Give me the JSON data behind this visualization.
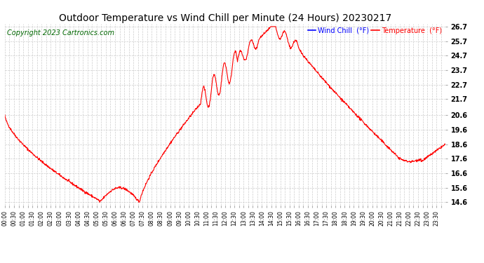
{
  "title": "Outdoor Temperature vs Wind Chill per Minute (24 Hours) 20230217",
  "copyright": "Copyright 2023 Cartronics.com",
  "legend_wind_chill": "Wind Chill  (°F)",
  "legend_temperature": "Temperature  (°F)",
  "wind_chill_color": "blue",
  "temperature_color": "red",
  "ylim_min": 14.4,
  "ylim_max": 26.9,
  "yticks": [
    14.6,
    15.6,
    16.6,
    17.6,
    18.6,
    19.6,
    20.6,
    21.7,
    22.7,
    23.7,
    24.7,
    25.7,
    26.7
  ],
  "background_color": "#ffffff",
  "grid_color": "#cccccc",
  "title_color": "#000000",
  "title_fontsize": 10,
  "copyright_color": "#006600",
  "copyright_fontsize": 7,
  "line_width": 0.8,
  "fig_width": 6.9,
  "fig_height": 3.75,
  "dpi": 100
}
